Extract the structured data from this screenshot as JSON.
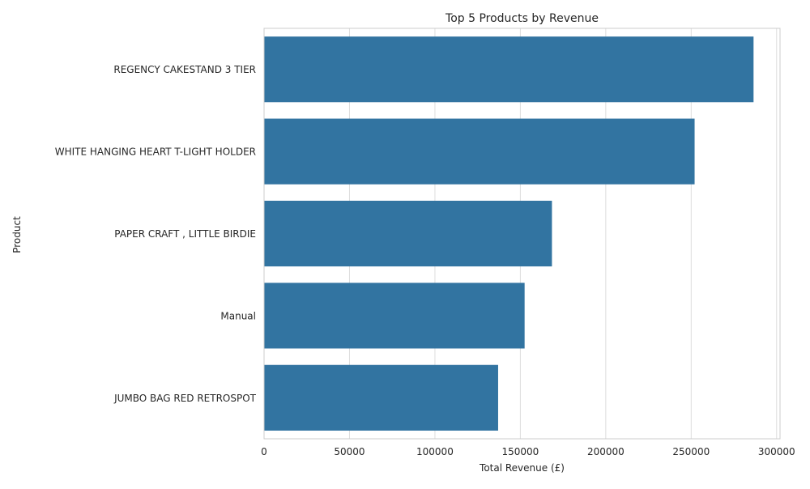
{
  "chart_data": {
    "type": "bar",
    "orientation": "horizontal",
    "title": "Top 5 Products by Revenue",
    "xlabel": "Total Revenue (£)",
    "ylabel": "Product",
    "categories": [
      "REGENCY CAKESTAND 3 TIER",
      "WHITE HANGING HEART T-LIGHT HOLDER",
      "PAPER CRAFT , LITTLE BIRDIE",
      "Manual",
      "JUMBO BAG RED RETROSPOT"
    ],
    "values": [
      286500,
      252000,
      168500,
      152500,
      137000
    ],
    "xlim": [
      0,
      302000
    ],
    "x_ticks": [
      0,
      50000,
      100000,
      150000,
      200000,
      250000,
      300000
    ],
    "x_tick_labels": [
      "0",
      "50000",
      "100000",
      "150000",
      "200000",
      "250000",
      "300000"
    ],
    "grid": true,
    "legend": "none",
    "colors": {
      "bar": "#3274a1",
      "grid": "#dddddd",
      "axis_frame": "#cccccc",
      "text": "#262626",
      "background": "#ffffff"
    }
  }
}
